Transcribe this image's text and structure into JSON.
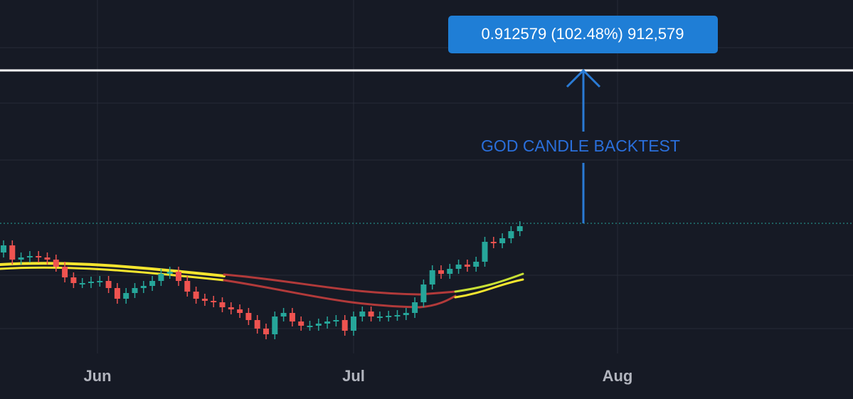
{
  "measure_label": "0.912579 (102.48%) 912,579",
  "annotation": "GOD CANDLE BACKTEST",
  "x_axis_labels": [
    "Jun",
    "Jul",
    "Aug"
  ]
}
